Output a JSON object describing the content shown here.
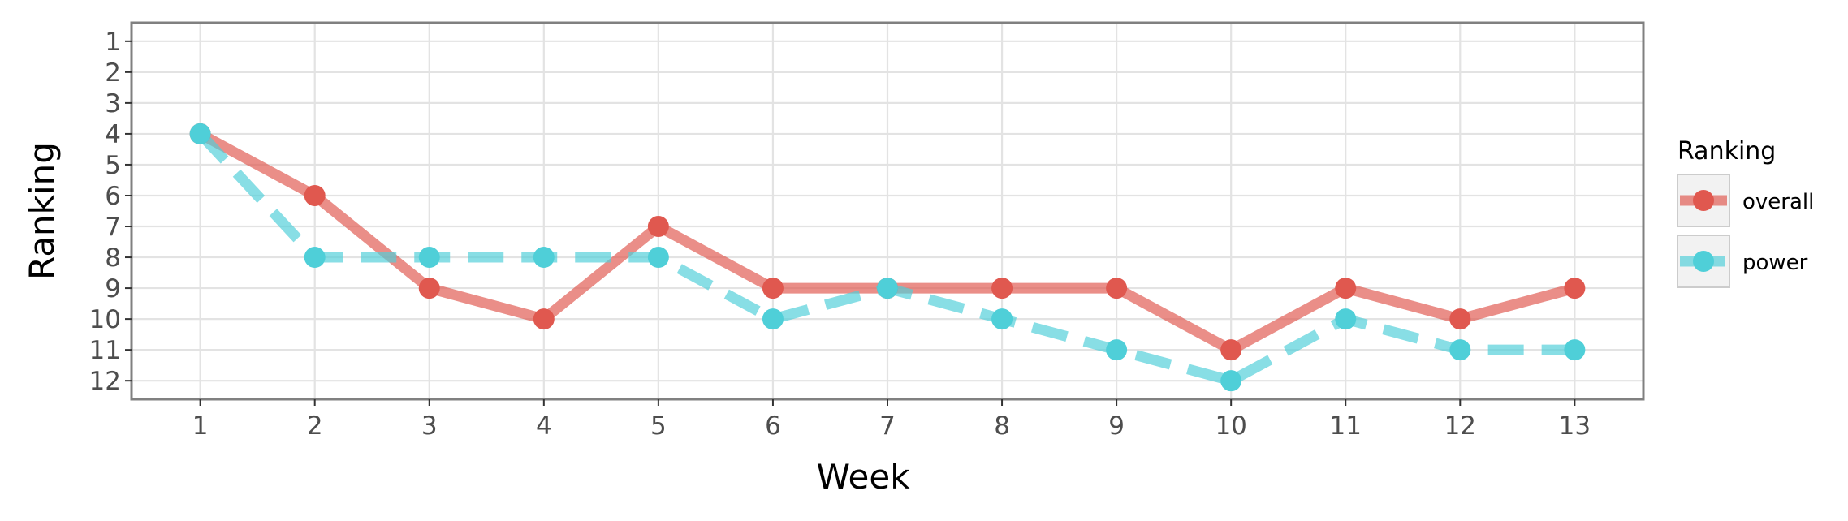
{
  "chart_data": {
    "type": "line",
    "xlabel": "Week",
    "ylabel": "Ranking",
    "x": [
      1,
      2,
      3,
      4,
      5,
      6,
      7,
      8,
      9,
      10,
      11,
      12,
      13
    ],
    "xlim": [
      0.4,
      13.6
    ],
    "ylim": [
      12.6,
      0.4
    ],
    "y_reversed": true,
    "x_ticks": [
      "1",
      "2",
      "3",
      "4",
      "5",
      "6",
      "7",
      "8",
      "9",
      "10",
      "11",
      "12",
      "13"
    ],
    "y_ticks": [
      "1",
      "2",
      "3",
      "4",
      "5",
      "6",
      "7",
      "8",
      "9",
      "10",
      "11",
      "12"
    ],
    "grid": true,
    "legend": {
      "title": "Ranking",
      "placement": "right"
    },
    "series": [
      {
        "name": "overall",
        "color": "#e0584f",
        "style": "solid",
        "values": [
          4,
          6,
          9,
          10,
          7,
          9,
          9,
          9,
          9,
          11,
          9,
          10,
          9
        ]
      },
      {
        "name": "power",
        "color": "#4fcfd8",
        "style": "dashed",
        "values": [
          4,
          8,
          8,
          8,
          8,
          10,
          9,
          10,
          11,
          12,
          10,
          11,
          11
        ]
      }
    ]
  }
}
